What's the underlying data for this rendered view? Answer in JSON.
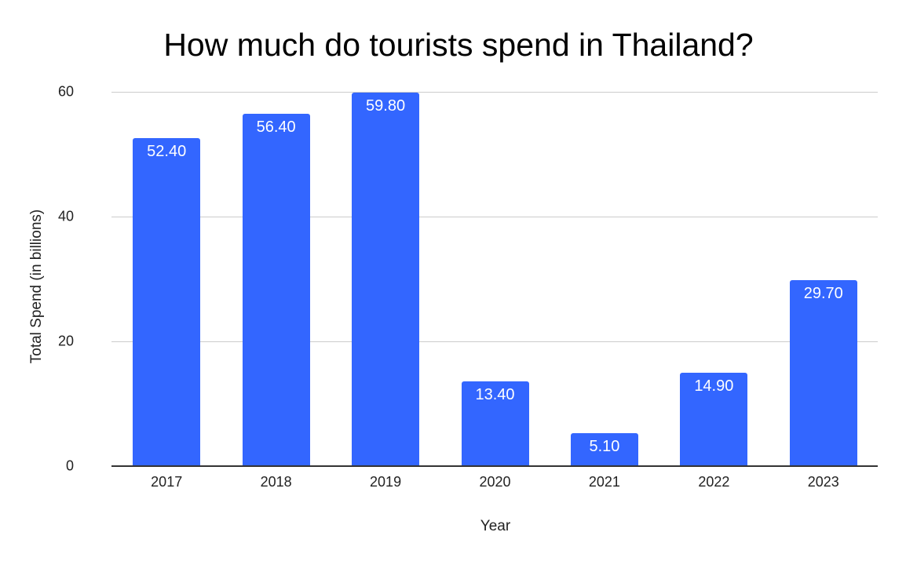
{
  "chart_data": {
    "type": "bar",
    "title": "How much do tourists spend in Thailand?",
    "xlabel": "Year",
    "ylabel": "Total Spend (in billions)",
    "categories": [
      "2017",
      "2018",
      "2019",
      "2020",
      "2021",
      "2022",
      "2023"
    ],
    "values": [
      52.4,
      56.4,
      59.8,
      13.4,
      5.1,
      14.9,
      29.7
    ],
    "data_labels": [
      "52.40",
      "56.40",
      "59.80",
      "13.40",
      "5.10",
      "14.90",
      "29.70"
    ],
    "ylim": [
      0,
      60
    ],
    "yticks": [
      "0",
      "20",
      "40",
      "60"
    ],
    "grid": true,
    "legend": null,
    "bar_color": "#3366ff"
  }
}
